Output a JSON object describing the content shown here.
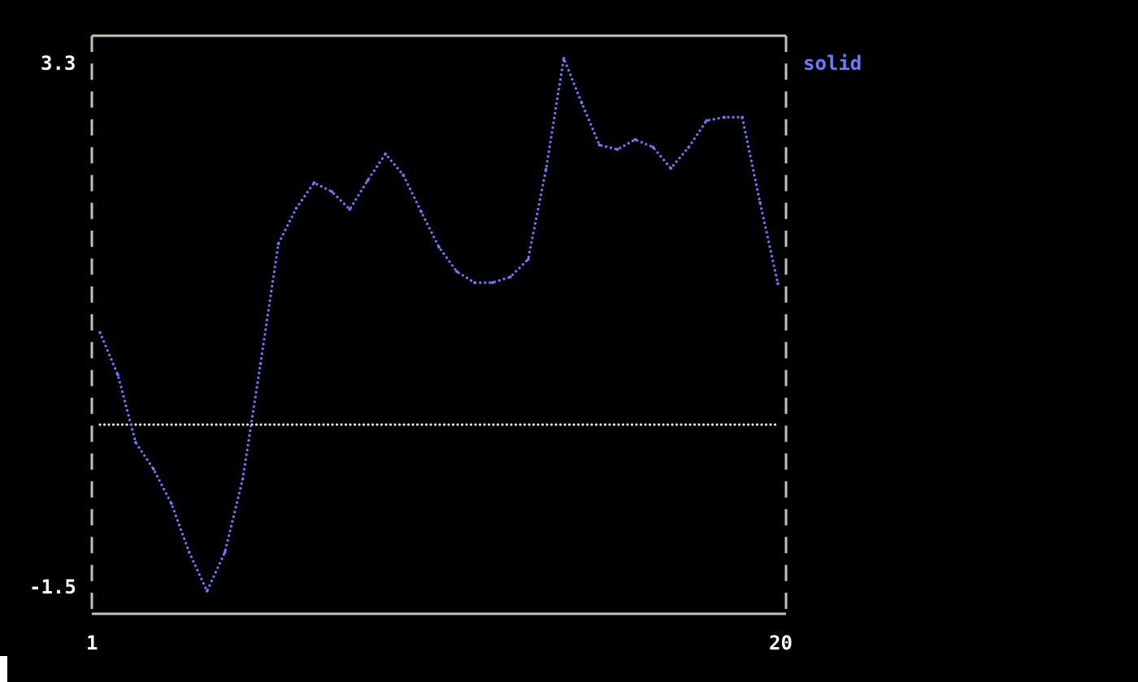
{
  "chart_data": {
    "type": "line",
    "title": "",
    "xlabel": "",
    "ylabel": "",
    "xlim": [
      1,
      20
    ],
    "ylim": [
      -1.5,
      3.3
    ],
    "x_tick_labels": [
      "1",
      "20"
    ],
    "y_tick_labels": [
      "3.3",
      "-1.5"
    ],
    "grid": false,
    "legend_placement": "right",
    "zero_line": true,
    "series": [
      {
        "name": "solid",
        "color": "#6b7cff",
        "x": [
          1,
          1.5,
          2,
          2.5,
          3,
          3.5,
          4,
          4.5,
          5,
          5.5,
          6,
          6.5,
          7,
          7.5,
          8,
          8.5,
          9,
          9.5,
          10,
          10.5,
          11,
          11.5,
          12,
          12.5,
          13,
          13.5,
          14,
          14.5,
          15,
          15.5,
          16,
          16.5,
          17,
          17.5,
          18,
          18.5,
          19,
          19.5,
          20
        ],
        "y": [
          0.83,
          0.45,
          -0.16,
          -0.4,
          -0.71,
          -1.15,
          -1.5,
          -1.15,
          -0.49,
          0.55,
          1.63,
          1.95,
          2.18,
          2.1,
          1.94,
          2.2,
          2.44,
          2.25,
          1.92,
          1.6,
          1.38,
          1.28,
          1.28,
          1.33,
          1.49,
          2.3,
          3.3,
          2.9,
          2.52,
          2.48,
          2.57,
          2.5,
          2.31,
          2.5,
          2.74,
          2.77,
          2.77,
          2.0,
          1.27
        ]
      }
    ]
  },
  "axis_color": "#c8c0b0",
  "zero_line_color": "#ffffff"
}
